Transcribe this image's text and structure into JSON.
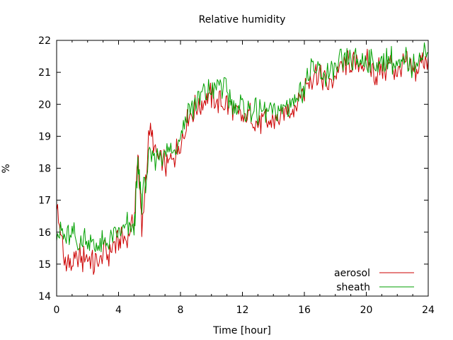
{
  "chart_data": {
    "type": "line",
    "title": "Relative humidity",
    "xlabel": "Time [hour]",
    "ylabel": "%",
    "xlim": [
      0,
      24
    ],
    "ylim": [
      14,
      22
    ],
    "xticks": [
      "0",
      "4",
      "8",
      "12",
      "16",
      "20",
      "24"
    ],
    "yticks": [
      "14",
      "15",
      "16",
      "17",
      "18",
      "19",
      "20",
      "21",
      "22"
    ],
    "grid": false,
    "legend_position": "bottom-right",
    "x": [
      0.0,
      0.5,
      1.0,
      1.5,
      2.0,
      2.5,
      3.0,
      3.5,
      4.0,
      4.5,
      5.0,
      5.25,
      5.5,
      6.0,
      6.5,
      7.0,
      7.5,
      8.0,
      8.5,
      9.0,
      9.5,
      10.0,
      10.5,
      11.0,
      11.5,
      12.0,
      12.5,
      13.0,
      13.5,
      14.0,
      14.5,
      15.0,
      15.5,
      16.0,
      16.5,
      17.0,
      17.5,
      18.0,
      18.5,
      19.0,
      19.5,
      20.0,
      20.5,
      21.0,
      21.5,
      22.0,
      22.5,
      23.0,
      23.5,
      24.0
    ],
    "series": [
      {
        "name": "aerosol",
        "color": "#cc0000",
        "values": [
          16.8,
          15.1,
          15.0,
          15.2,
          15.1,
          15.0,
          15.3,
          15.4,
          15.8,
          15.9,
          16.2,
          18.5,
          16.0,
          19.2,
          18.4,
          18.1,
          18.3,
          18.8,
          19.6,
          19.9,
          20.1,
          20.2,
          20.1,
          20.0,
          19.8,
          19.5,
          19.6,
          19.4,
          19.5,
          19.5,
          19.6,
          19.8,
          20.0,
          20.5,
          20.9,
          21.0,
          20.5,
          21.0,
          21.1,
          21.3,
          21.2,
          21.3,
          21.0,
          21.1,
          21.2,
          21.1,
          21.3,
          21.0,
          21.3,
          21.5
        ]
      },
      {
        "name": "sheath",
        "color": "#00a000",
        "values": [
          16.2,
          15.8,
          15.9,
          15.7,
          15.8,
          15.6,
          15.6,
          15.7,
          15.9,
          16.2,
          16.0,
          18.0,
          17.0,
          18.3,
          18.4,
          18.5,
          18.6,
          19.0,
          19.8,
          20.0,
          20.4,
          20.5,
          20.6,
          20.3,
          20.0,
          19.9,
          19.8,
          19.7,
          19.8,
          19.7,
          19.9,
          20.0,
          20.2,
          20.6,
          21.0,
          21.1,
          20.9,
          21.1,
          21.3,
          21.4,
          21.3,
          21.4,
          21.2,
          21.3,
          21.4,
          21.2,
          21.4,
          21.2,
          21.5,
          21.6
        ]
      }
    ]
  }
}
